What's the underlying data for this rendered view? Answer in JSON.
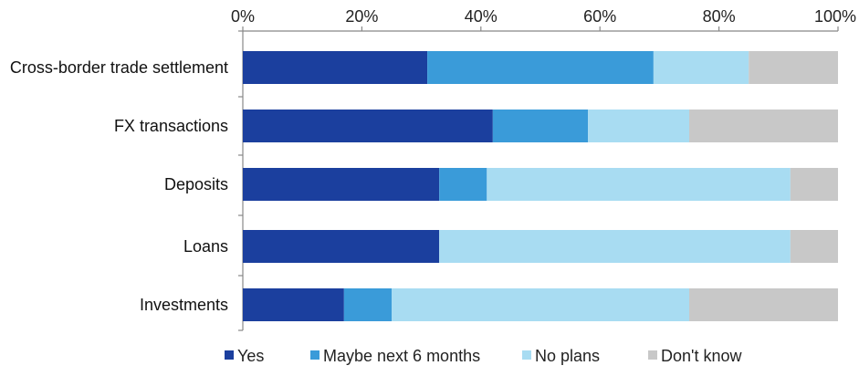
{
  "chart_data": {
    "type": "bar",
    "orientation": "horizontal",
    "stacked": true,
    "percent_stacked": true,
    "categories": [
      "Cross-border trade settlement",
      "FX transactions",
      "Deposits",
      "Loans",
      "Investments"
    ],
    "series": [
      {
        "name": "Yes",
        "values": [
          31,
          42,
          33,
          33,
          17
        ],
        "color": "#1b3f9e"
      },
      {
        "name": "Maybe next 6 months",
        "values": [
          38,
          16,
          8,
          0,
          8
        ],
        "color": "#3a9bd9"
      },
      {
        "name": "No plans",
        "values": [
          16,
          17,
          51,
          59,
          50
        ],
        "color": "#a8dcf2"
      },
      {
        "name": "Don't know",
        "values": [
          15,
          25,
          8,
          8,
          25
        ],
        "color": "#c8c8c8"
      }
    ],
    "xlim": [
      0,
      100
    ],
    "xticks": [
      "0%",
      "20%",
      "40%",
      "60%",
      "80%",
      "100%"
    ],
    "x_axis_position": "top",
    "grid": false,
    "legend_position": "bottom",
    "title": "",
    "xlabel": "",
    "ylabel": ""
  }
}
